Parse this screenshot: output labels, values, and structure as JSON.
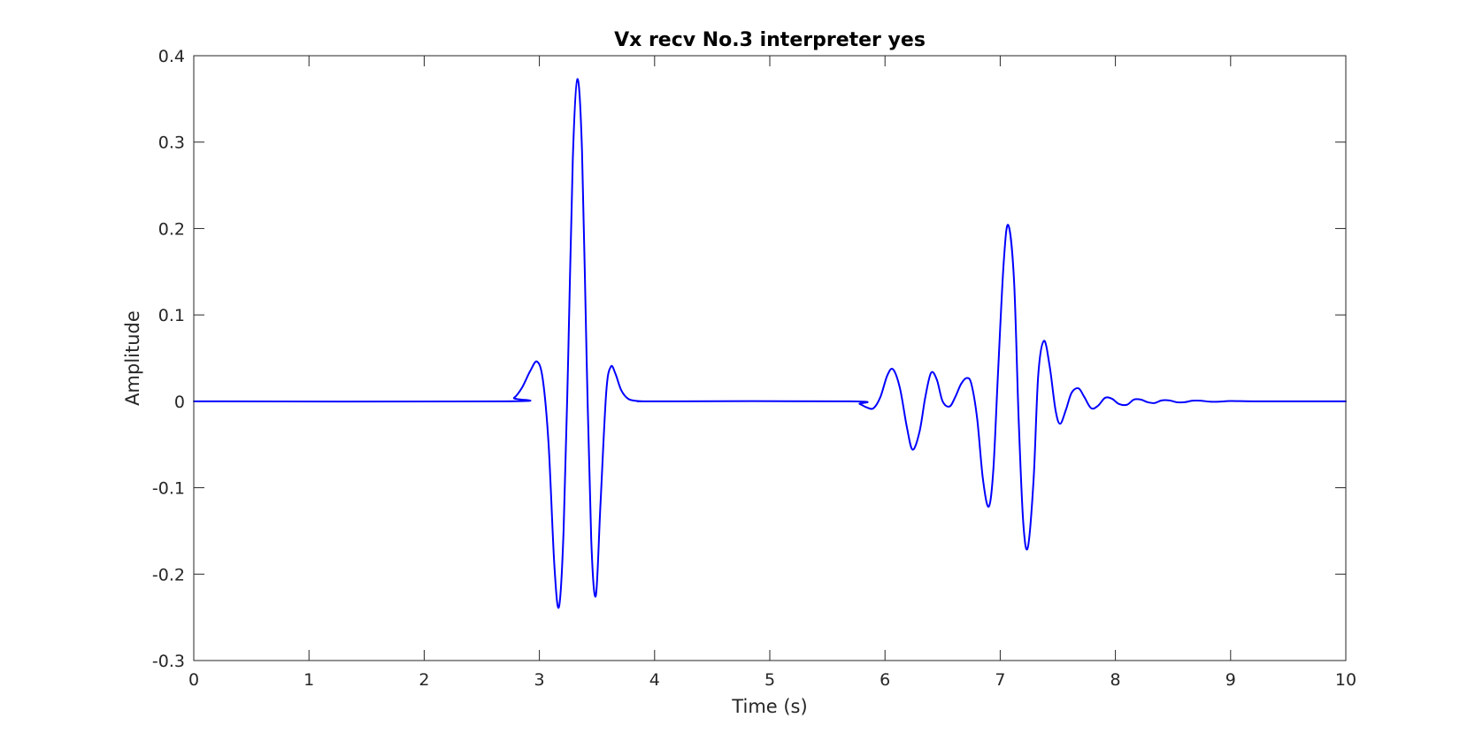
{
  "chart_data": {
    "type": "line",
    "title": "Vx recv No.3 interpreter yes",
    "xlabel": "Time (s)",
    "ylabel": "Amplitude",
    "xlim": [
      0,
      10
    ],
    "ylim": [
      -0.3,
      0.4
    ],
    "xticks": [
      0,
      1,
      2,
      3,
      4,
      5,
      6,
      7,
      8,
      9,
      10
    ],
    "xtick_labels": [
      "0",
      "1",
      "2",
      "3",
      "4",
      "5",
      "6",
      "7",
      "8",
      "9",
      "10"
    ],
    "yticks": [
      -0.3,
      -0.2,
      -0.1,
      0,
      0.1,
      0.2,
      0.3,
      0.4
    ],
    "ytick_labels": [
      "-0.3",
      "-0.2",
      "-0.1",
      "0",
      "0.1",
      "0.2",
      "0.3",
      "0.4"
    ],
    "grid": false,
    "series": [
      {
        "color": "#0000ff",
        "x": [
          0,
          2.7,
          2.78,
          2.85,
          2.92,
          2.98,
          3.03,
          3.08,
          3.13,
          3.17,
          3.21,
          3.25,
          3.29,
          3.33,
          3.37,
          3.41,
          3.45,
          3.49,
          3.53,
          3.58,
          3.62,
          3.66,
          3.71,
          3.77,
          3.84,
          3.92,
          4.0,
          5.7,
          5.78,
          5.84,
          5.9,
          5.96,
          6.02,
          6.07,
          6.13,
          6.19,
          6.24,
          6.3,
          6.35,
          6.4,
          6.45,
          6.5,
          6.56,
          6.61,
          6.66,
          6.71,
          6.75,
          6.8,
          6.85,
          6.9,
          6.94,
          6.98,
          7.03,
          7.07,
          7.12,
          7.16,
          7.2,
          7.24,
          7.29,
          7.33,
          7.38,
          7.43,
          7.48,
          7.52,
          7.57,
          7.62,
          7.68,
          7.73,
          7.79,
          7.85,
          7.91,
          7.97,
          8.03,
          8.1,
          8.16,
          8.22,
          8.28,
          8.34,
          8.4,
          8.47,
          8.53,
          8.6,
          8.67,
          8.74,
          8.82,
          8.9,
          9.0,
          9.2,
          9.5,
          10
        ],
        "y": [
          0,
          0,
          0.004,
          0.016,
          0.035,
          0.046,
          0.025,
          -0.05,
          -0.19,
          -0.238,
          -0.15,
          0.05,
          0.28,
          0.373,
          0.29,
          0.05,
          -0.16,
          -0.225,
          -0.12,
          0.01,
          0.04,
          0.032,
          0.013,
          0.003,
          0.0005,
          0,
          0,
          0,
          -0.003,
          -0.007,
          -0.008,
          0.005,
          0.03,
          0.037,
          0.015,
          -0.03,
          -0.056,
          -0.035,
          0.005,
          0.033,
          0.025,
          0.0,
          -0.006,
          0.005,
          0.02,
          0.027,
          0.02,
          -0.02,
          -0.09,
          -0.122,
          -0.08,
          0.03,
          0.16,
          0.204,
          0.14,
          -0.02,
          -0.14,
          -0.169,
          -0.09,
          0.03,
          0.07,
          0.04,
          -0.01,
          -0.026,
          -0.01,
          0.01,
          0.015,
          0.005,
          -0.008,
          -0.005,
          0.004,
          0.003,
          -0.003,
          -0.004,
          0.002,
          0.002,
          -0.001,
          -0.002,
          0.001,
          0.001,
          -0.001,
          -0.001,
          0.0007,
          0.0007,
          -0.0004,
          -0.0004,
          0.0003,
          0,
          0,
          0
        ]
      }
    ]
  }
}
